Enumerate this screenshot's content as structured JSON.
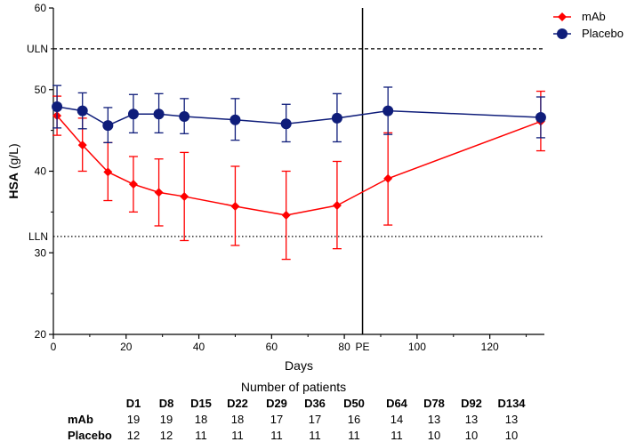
{
  "chart_data": {
    "type": "line",
    "xlabel": "Days",
    "ylabel": "HSA (g/L)",
    "xlim": [
      0,
      135
    ],
    "ylim": [
      20,
      60
    ],
    "x_ticks": [
      {
        "value": 0,
        "label": "0"
      },
      {
        "value": 20,
        "label": "20"
      },
      {
        "value": 40,
        "label": "40"
      },
      {
        "value": 60,
        "label": "60"
      },
      {
        "value": 80,
        "label": "80"
      },
      {
        "value": 100,
        "label": "100"
      },
      {
        "value": 120,
        "label": "120"
      }
    ],
    "y_ticks": [
      20,
      30,
      40,
      50,
      60
    ],
    "reference_lines": [
      {
        "label": "ULN",
        "value": 55,
        "style": "dashed"
      },
      {
        "label": "LLN",
        "value": 32,
        "style": "dotted"
      }
    ],
    "vertical_marker": {
      "label": "PE",
      "value": 85
    },
    "legend_position": "top-right",
    "series": [
      {
        "name": "mAb",
        "color": "#ff0000",
        "marker": "diamond",
        "x": [
          1,
          8,
          15,
          22,
          29,
          36,
          50,
          64,
          78,
          92,
          134
        ],
        "y": [
          46.8,
          43.2,
          39.9,
          38.4,
          37.4,
          36.9,
          35.7,
          34.6,
          35.8,
          39.1,
          46.1
        ],
        "err_low": [
          44.4,
          40.0,
          36.4,
          35.0,
          33.3,
          31.5,
          30.9,
          29.2,
          30.5,
          33.4,
          42.5
        ],
        "err_high": [
          49.2,
          46.5,
          43.5,
          41.8,
          41.5,
          42.3,
          40.6,
          40.0,
          41.2,
          44.7,
          49.8
        ]
      },
      {
        "name": "Placebo",
        "color": "#0f1d7a",
        "marker": "circle",
        "x": [
          1,
          8,
          15,
          22,
          29,
          36,
          50,
          64,
          78,
          92,
          134
        ],
        "y": [
          47.9,
          47.4,
          45.6,
          47.0,
          47.0,
          46.7,
          46.3,
          45.8,
          46.5,
          47.4,
          46.6
        ],
        "err_low": [
          45.3,
          45.2,
          43.5,
          44.7,
          44.7,
          44.6,
          43.8,
          43.6,
          43.6,
          44.5,
          44.1
        ],
        "err_high": [
          50.5,
          49.6,
          47.8,
          49.4,
          49.5,
          48.9,
          48.9,
          48.2,
          49.5,
          50.3,
          49.1
        ]
      }
    ]
  },
  "table": {
    "title": "Number of patients",
    "columns": [
      "D1",
      "D8",
      "D15",
      "D22",
      "D29",
      "D36",
      "D50",
      "D64",
      "D78",
      "D92",
      "D134"
    ],
    "rows": [
      {
        "label": "mAb",
        "values": [
          "19",
          "19",
          "18",
          "18",
          "17",
          "17",
          "16",
          "14",
          "13",
          "13",
          "13"
        ]
      },
      {
        "label": "Placebo",
        "values": [
          "12",
          "12",
          "11",
          "11",
          "11",
          "11",
          "11",
          "11",
          "10",
          "10",
          "10"
        ]
      }
    ]
  }
}
